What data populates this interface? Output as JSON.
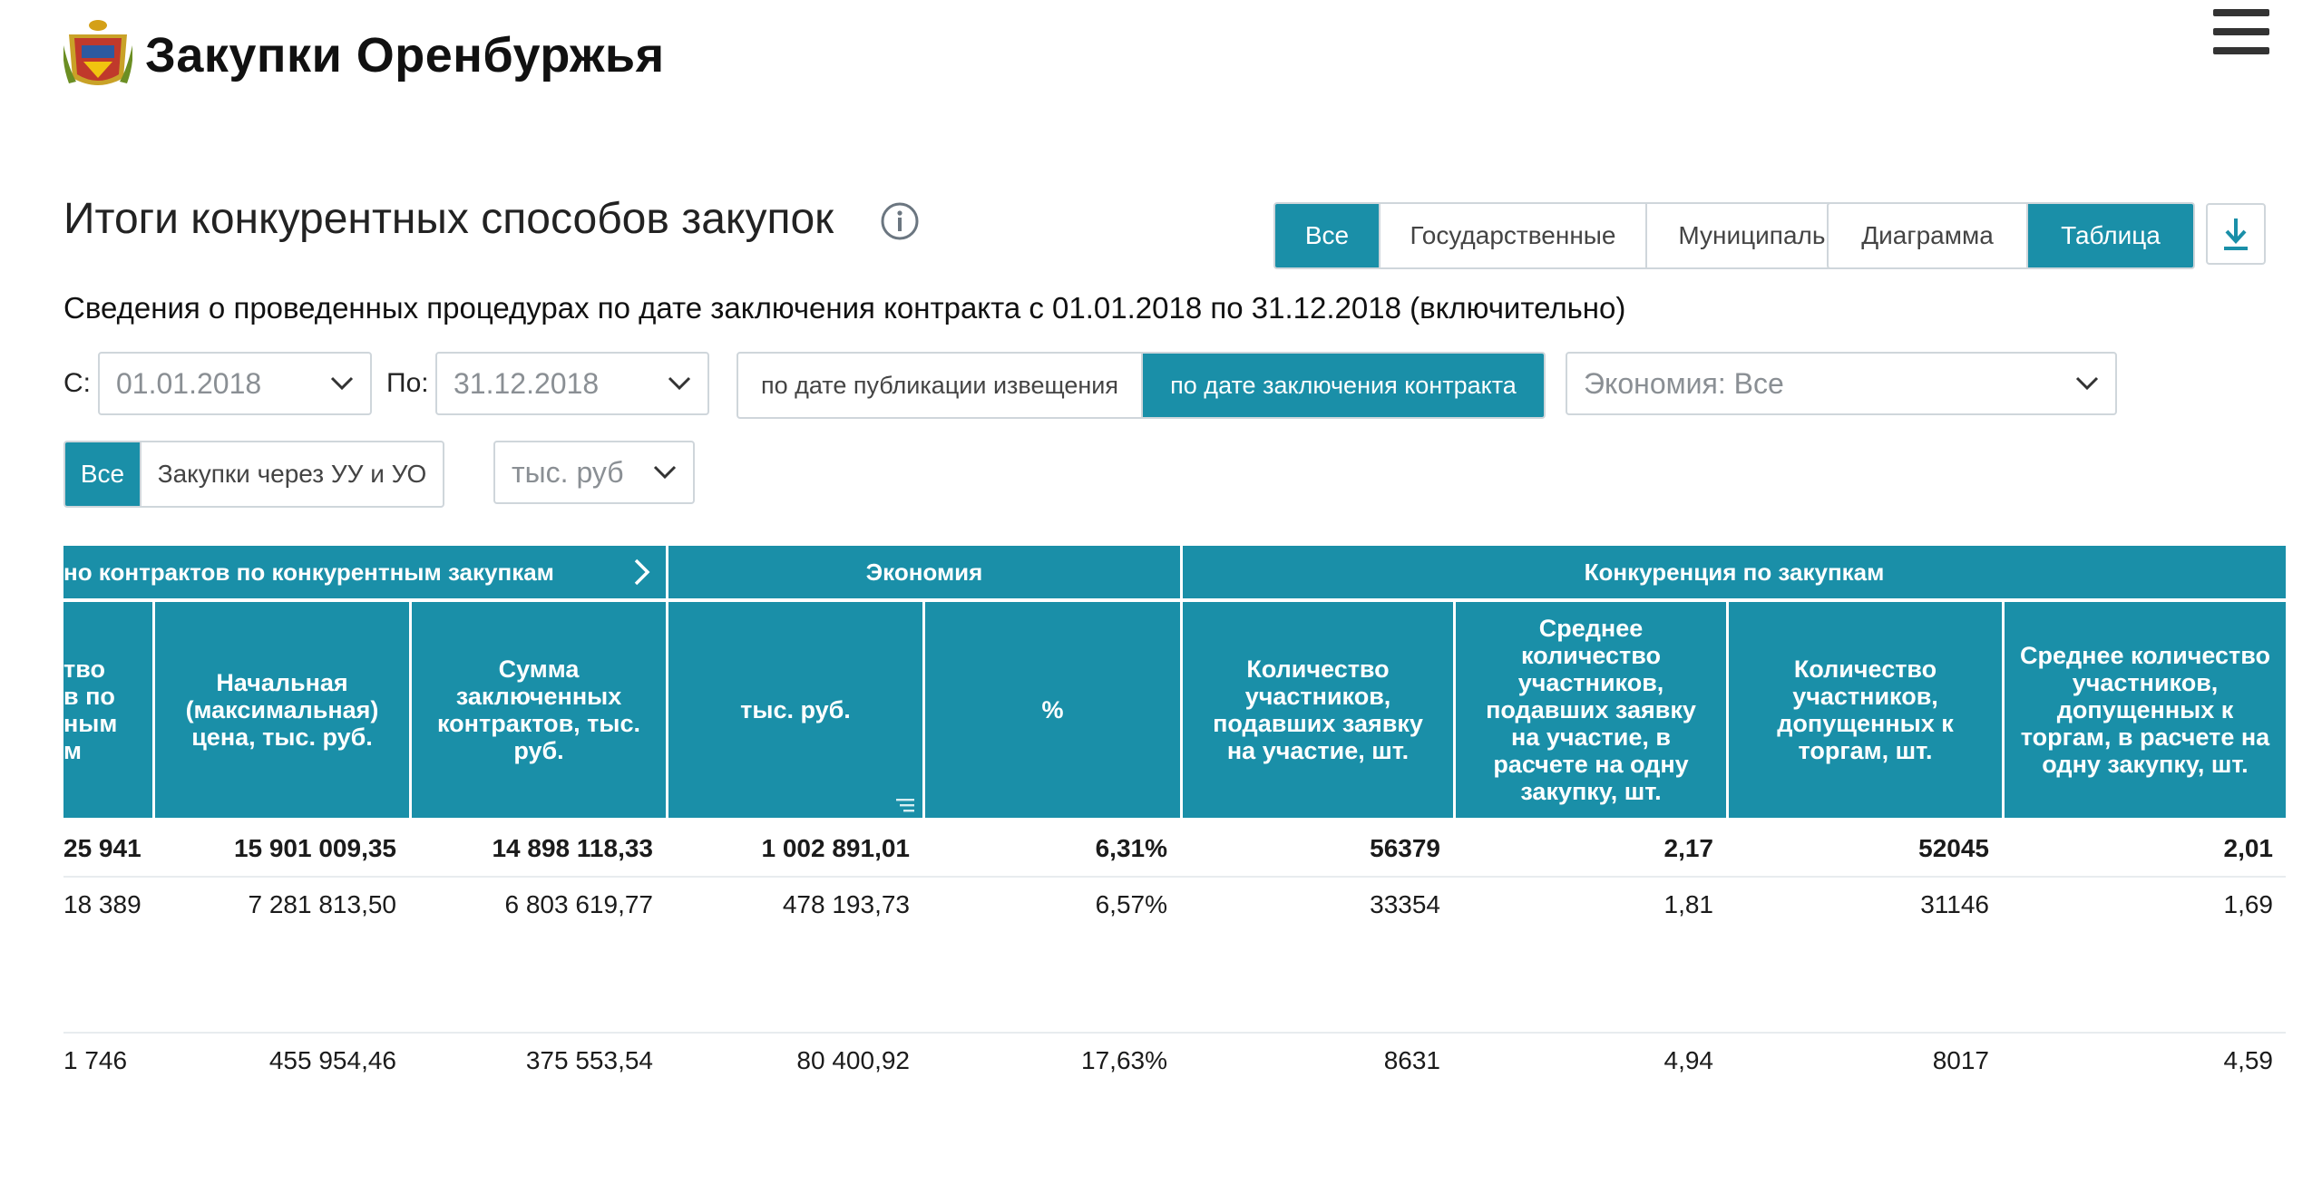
{
  "header": {
    "brand": "Закупки Оренбуржья"
  },
  "title": "Итоги конкурентных способов закупок",
  "type_filter": {
    "options": [
      "Все",
      "Государственные",
      "Муниципальные"
    ]
  },
  "view_filter": {
    "options": [
      "Диаграмма",
      "Таблица"
    ]
  },
  "subtitle": "Сведения о проведенных процедурах по дате заключения контракта с 01.01.2018 по 31.12.2018 (включительно)",
  "filters": {
    "from_label": "С:",
    "from_value": "01.01.2018",
    "to_label": "По:",
    "to_value": "31.12.2018",
    "date_mode": [
      "по дате публикации извещения",
      "по дате заключения контракта"
    ],
    "economy_select": "Экономия: Все",
    "purchase_scope": [
      "Все",
      "Закупки через УУ и УО"
    ],
    "units_select": "тыс. руб"
  },
  "table": {
    "groups": [
      "но контрактов по конкурентным закупкам",
      "Экономия",
      "Конкуренция по закупкам"
    ],
    "columns": [
      "тво\nв по\nным\nм",
      "Начальная (максимальная) цена, тыс. руб.",
      "Сумма заключенных контрактов, тыс. руб.",
      "тыс. руб.",
      "%",
      "Количество участников, подавших заявку на участие, шт.",
      "Среднее количество участников, подавших заявку на участие, в расчете на одну закупку, шт.",
      "Количество участников, допущенных к торгам, шт.",
      "Среднее количество участников, допущенных к торгам, в расчете на одну закупку, шт."
    ],
    "rows": [
      [
        "25 941",
        "15 901 009,35",
        "14 898 118,33",
        "1 002 891,01",
        "6,31%",
        "56379",
        "2,17",
        "52045",
        "2,01"
      ],
      [
        "18 389",
        "7 281 813,50",
        "6 803 619,77",
        "478 193,73",
        "6,57%",
        "33354",
        "1,81",
        "31146",
        "1,69"
      ],
      [
        "1 746",
        "455 954,46",
        "375 553,54",
        "80 400,92",
        "17,63%",
        "8631",
        "4,94",
        "8017",
        "4,59"
      ]
    ]
  }
}
